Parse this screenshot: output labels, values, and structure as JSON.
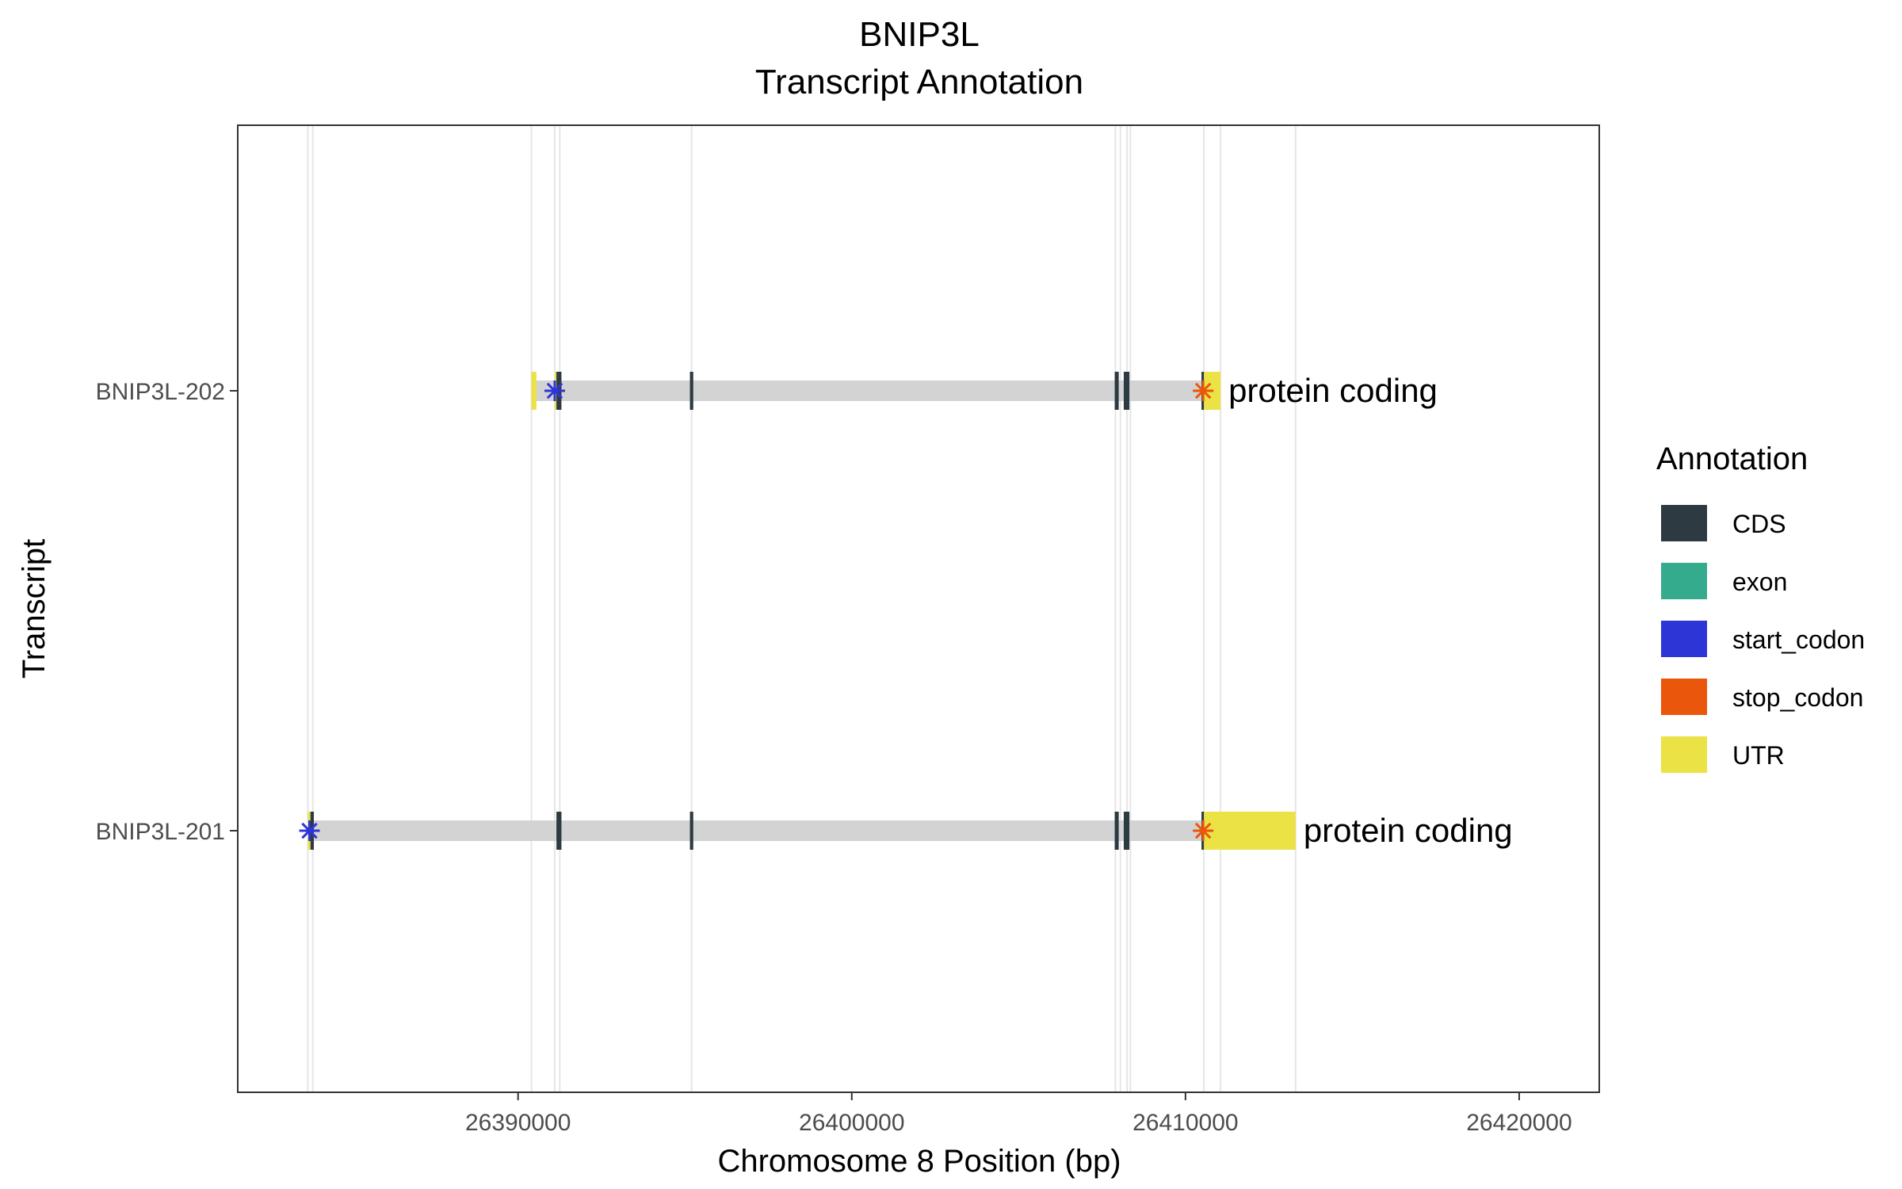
{
  "chart_data": {
    "type": "gene-track",
    "title_line1": "BNIP3L",
    "title_line2": "Transcript Annotation",
    "xlabel": "Chromosome 8 Position (bp)",
    "ylabel": "Transcript",
    "xlim": [
      26381600,
      26422400
    ],
    "x_ticks": [
      26390000,
      26400000,
      26410000,
      26420000
    ],
    "x_tick_labels": [
      "26390000",
      "26400000",
      "26410000",
      "26420000"
    ],
    "grid": "vertical lines at feature boundaries",
    "legend": {
      "title": "Annotation",
      "placement": "right",
      "items": [
        {
          "label": "CDS",
          "color": "#2d3a42"
        },
        {
          "label": "exon",
          "color": "#35ab8e"
        },
        {
          "label": "start_codon",
          "color": "#2d35d6"
        },
        {
          "label": "stop_codon",
          "color": "#ea560c"
        },
        {
          "label": "UTR",
          "color": "#ebe246"
        }
      ]
    },
    "guide_lines": [
      26383700,
      26383850,
      26390400,
      26391100,
      26391250,
      26395200,
      26407900,
      26408050,
      26408250,
      26408350,
      26410550,
      26411050,
      26413300
    ],
    "transcripts": [
      {
        "name": "BNIP3L-202",
        "biotype_label": "protein coding",
        "span": [
          26390400,
          26411050
        ],
        "features": [
          {
            "type": "UTR",
            "start": 26390400,
            "end": 26390550
          },
          {
            "type": "UTR",
            "start": 26391100,
            "end": 26391250
          },
          {
            "type": "CDS",
            "start": 26391150,
            "end": 26391300
          },
          {
            "type": "CDS",
            "start": 26395150,
            "end": 26395250
          },
          {
            "type": "CDS",
            "start": 26407880,
            "end": 26408000
          },
          {
            "type": "CDS",
            "start": 26408150,
            "end": 26408320
          },
          {
            "type": "CDS",
            "start": 26410480,
            "end": 26410550
          },
          {
            "type": "UTR",
            "start": 26410550,
            "end": 26411050
          }
        ],
        "start_codon": 26391100,
        "stop_codon": 26410530
      },
      {
        "name": "BNIP3L-201",
        "biotype_label": "protein coding",
        "span": [
          26383700,
          26413300
        ],
        "features": [
          {
            "type": "UTR",
            "start": 26383700,
            "end": 26383800
          },
          {
            "type": "CDS",
            "start": 26383780,
            "end": 26383880
          },
          {
            "type": "CDS",
            "start": 26391150,
            "end": 26391300
          },
          {
            "type": "CDS",
            "start": 26395150,
            "end": 26395250
          },
          {
            "type": "CDS",
            "start": 26407880,
            "end": 26408000
          },
          {
            "type": "CDS",
            "start": 26408150,
            "end": 26408320
          },
          {
            "type": "CDS",
            "start": 26410480,
            "end": 26410550
          },
          {
            "type": "UTR",
            "start": 26410550,
            "end": 26413300
          }
        ],
        "start_codon": 26383750,
        "stop_codon": 26410530
      }
    ]
  }
}
